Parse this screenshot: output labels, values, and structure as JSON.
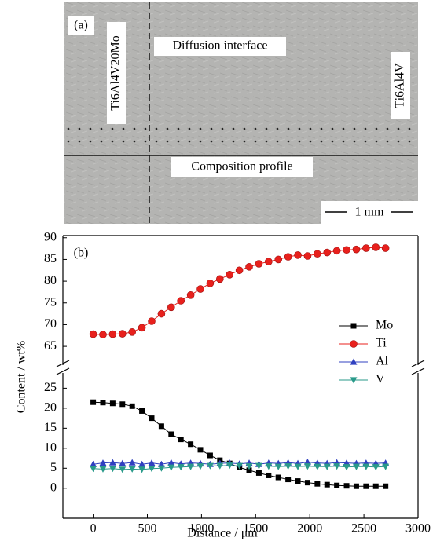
{
  "micrograph": {
    "panel_label": "(a)",
    "left_label": "Ti6Al4V20Mo",
    "interface_label": "Diffusion interface",
    "right_label": "Ti6Al4V",
    "profile_label": "Composition profile",
    "scale_bar": "1 mm"
  },
  "chart_data": {
    "type": "line",
    "panel_label": "(b)",
    "x_label": "Distance / μm",
    "y_label": "Content / wt%",
    "xlim": [
      -280,
      3000
    ],
    "xticks": [
      0,
      500,
      1000,
      1500,
      2000,
      2500,
      3000
    ],
    "broken_axis": {
      "upper_ylim": [
        60.5,
        90.5
      ],
      "upper_yticks": [
        65,
        70,
        75,
        80,
        85,
        90
      ],
      "lower_ylim": [
        -7.5,
        29
      ],
      "lower_yticks": [
        0,
        5,
        10,
        15,
        20,
        25
      ]
    },
    "x": [
      0,
      90,
      180,
      270,
      360,
      450,
      540,
      630,
      720,
      810,
      900,
      990,
      1080,
      1170,
      1260,
      1350,
      1440,
      1530,
      1620,
      1710,
      1800,
      1890,
      1980,
      2070,
      2160,
      2250,
      2340,
      2430,
      2520,
      2610,
      2700
    ],
    "series": [
      {
        "name": "Mo",
        "color": "#000000",
        "marker": "square",
        "values": [
          21.5,
          21.4,
          21.2,
          21,
          20.5,
          19.3,
          17.5,
          15.5,
          13.5,
          12.2,
          11,
          9.6,
          8.2,
          7,
          6.2,
          5.2,
          4.5,
          3.8,
          3.2,
          2.7,
          2.2,
          1.8,
          1.4,
          1.1,
          0.9,
          0.7,
          0.6,
          0.5,
          0.5,
          0.5,
          0.5
        ]
      },
      {
        "name": "Ti",
        "color": "#e8201c",
        "marker": "circle",
        "values": [
          67.8,
          67.7,
          67.8,
          67.9,
          68.3,
          69.3,
          70.8,
          72.5,
          74,
          75.5,
          76.8,
          78.2,
          79.5,
          80.5,
          81.5,
          82.5,
          83.3,
          84,
          84.5,
          85,
          85.6,
          86,
          85.8,
          86.3,
          86.6,
          87,
          87.2,
          87.3,
          87.6,
          87.8,
          87.6
        ]
      },
      {
        "name": "Al",
        "color": "#3040c0",
        "marker": "triangle",
        "values": [
          6,
          6.3,
          6.4,
          6.2,
          6.4,
          6,
          6.3,
          6,
          6.4,
          6.1,
          6.3,
          6.2,
          6,
          6.2,
          6.3,
          6.1,
          6.3,
          6,
          6.3,
          6.2,
          6.4,
          6.2,
          6.5,
          6.3,
          6.2,
          6.4,
          6.3,
          6.2,
          6.3,
          6.2,
          6.3
        ]
      },
      {
        "name": "V",
        "color": "#2a9a8a",
        "marker": "triangle-down",
        "values": [
          4.9,
          4.8,
          4.9,
          4.7,
          4.8,
          4.7,
          4.9,
          5,
          5.2,
          5.3,
          5.4,
          5.5,
          5.6,
          5.6,
          5.7,
          5.6,
          5.5,
          5.6,
          5.5,
          5.4,
          5.5,
          5.4,
          5.5,
          5.4,
          5.4,
          5.5,
          5.3,
          5.4,
          5.4,
          5.3,
          5.4
        ]
      }
    ]
  }
}
